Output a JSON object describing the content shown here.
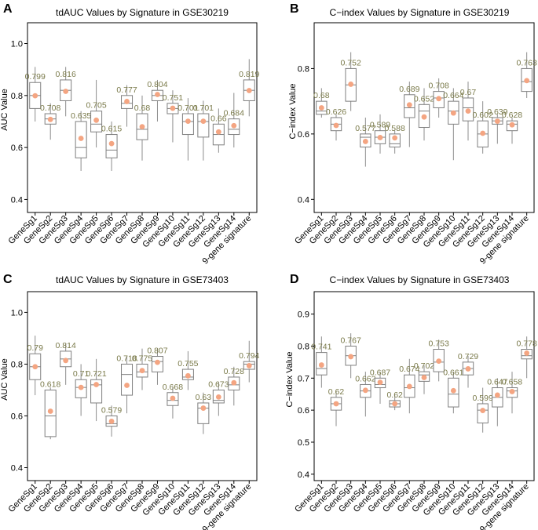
{
  "style": {
    "box_stroke": "#7f7f7f",
    "whisker_stroke": "#8c8c8c",
    "mean_dot": "#f4a582",
    "value_label": "#7a7a4a",
    "text": "#000000",
    "frame": "#000000"
  },
  "chart_data": [
    {
      "panel": "A",
      "type": "box",
      "title": "tdAUC Values by Signature in GSE30219",
      "xlabel": "",
      "ylabel": "AUC Value",
      "ylim": [
        0.35,
        1.08
      ],
      "yticks": [
        "0.4",
        "0.6",
        "0.8",
        "1.0"
      ],
      "ytick_values": [
        0.4,
        0.6,
        0.8,
        1.0
      ],
      "categories": [
        "GeneSg1",
        "GeneSg2",
        "GeneSg3",
        "GeneSg4",
        "GeneSg5",
        "GeneSg6",
        "GeneSg7",
        "GeneSg8",
        "GeneSg9",
        "GeneSg10",
        "GeneSg11",
        "GeneSg12",
        "GeneSg13",
        "GeneSg14",
        "9-gene signature"
      ],
      "means": [
        0.799,
        0.708,
        0.816,
        0.635,
        0.705,
        0.615,
        0.777,
        0.68,
        0.804,
        0.751,
        0.701,
        0.701,
        0.66,
        0.684,
        0.819
      ],
      "mean_labels": [
        "0.799",
        "0.708",
        "0.816",
        "0.635",
        "0.705",
        "0.615",
        "0.777",
        "0.68",
        "0.804",
        "0.751",
        "0.701",
        "0.701",
        "0.66",
        "0.684",
        "0.819"
      ],
      "boxes": [
        {
          "min": 0.7,
          "q1": 0.75,
          "median": 0.8,
          "q3": 0.85,
          "max": 0.91
        },
        {
          "min": 0.63,
          "q1": 0.69,
          "median": 0.71,
          "q3": 0.73,
          "max": 0.77
        },
        {
          "min": 0.72,
          "q1": 0.78,
          "median": 0.82,
          "q3": 0.86,
          "max": 0.91
        },
        {
          "min": 0.51,
          "q1": 0.56,
          "median": 0.6,
          "q3": 0.7,
          "max": 0.74
        },
        {
          "min": 0.6,
          "q1": 0.66,
          "median": 0.69,
          "q3": 0.74,
          "max": 0.86
        },
        {
          "min": 0.51,
          "q1": 0.56,
          "median": 0.59,
          "q3": 0.65,
          "max": 0.7
        },
        {
          "min": 0.68,
          "q1": 0.75,
          "median": 0.77,
          "q3": 0.8,
          "max": 0.84
        },
        {
          "min": 0.55,
          "q1": 0.63,
          "median": 0.67,
          "q3": 0.73,
          "max": 0.8
        },
        {
          "min": 0.7,
          "q1": 0.78,
          "median": 0.8,
          "q3": 0.82,
          "max": 0.86
        },
        {
          "min": 0.62,
          "q1": 0.73,
          "median": 0.75,
          "q3": 0.77,
          "max": 0.82
        },
        {
          "min": 0.55,
          "q1": 0.65,
          "median": 0.7,
          "q3": 0.73,
          "max": 0.79
        },
        {
          "min": 0.55,
          "q1": 0.64,
          "median": 0.7,
          "q3": 0.73,
          "max": 0.78
        },
        {
          "min": 0.58,
          "q1": 0.61,
          "median": 0.65,
          "q3": 0.69,
          "max": 0.75
        },
        {
          "min": 0.6,
          "q1": 0.65,
          "median": 0.67,
          "q3": 0.71,
          "max": 0.81
        },
        {
          "min": 0.72,
          "q1": 0.78,
          "median": 0.82,
          "q3": 0.86,
          "max": 0.94
        }
      ]
    },
    {
      "panel": "B",
      "type": "box",
      "title": "C−index Values by Signature in GSE30219",
      "xlabel": "",
      "ylabel": "C−index Value",
      "ylim": [
        0.36,
        0.94
      ],
      "yticks": [
        "0.4",
        "0.6",
        "0.8"
      ],
      "ytick_values": [
        0.4,
        0.6,
        0.8
      ],
      "categories": [
        "GeneSg1",
        "GeneSg2",
        "GeneSg3",
        "GeneSg4",
        "GeneSg5",
        "GeneSg6",
        "GeneSg7",
        "GeneSg8",
        "GeneSg9",
        "GeneSg10",
        "GeneSg11",
        "GeneSg12",
        "GeneSg13",
        "GeneSg14",
        "9-gene signature"
      ],
      "means": [
        0.68,
        0.626,
        0.752,
        0.577,
        0.589,
        0.588,
        0.689,
        0.652,
        0.708,
        0.664,
        0.67,
        0.602,
        0.639,
        0.628,
        0.763
      ],
      "mean_labels": [
        "0.68",
        "0.626",
        "0.752",
        "0.577",
        "0.589",
        "0.588",
        "0.689",
        "0.652",
        "0.708",
        "0.664",
        "0.67",
        "0.602",
        "0.639",
        "0.628",
        "0.763"
      ],
      "boxes": [
        {
          "min": 0.65,
          "q1": 0.66,
          "median": 0.67,
          "q3": 0.7,
          "max": 0.74
        },
        {
          "min": 0.58,
          "q1": 0.61,
          "median": 0.63,
          "q3": 0.65,
          "max": 0.66
        },
        {
          "min": 0.67,
          "q1": 0.7,
          "median": 0.75,
          "q3": 0.8,
          "max": 0.85
        },
        {
          "min": 0.5,
          "q1": 0.56,
          "median": 0.59,
          "q3": 0.6,
          "max": 0.65
        },
        {
          "min": 0.54,
          "q1": 0.57,
          "median": 0.59,
          "q3": 0.61,
          "max": 0.66
        },
        {
          "min": 0.54,
          "q1": 0.56,
          "median": 0.57,
          "q3": 0.6,
          "max": 0.61
        },
        {
          "min": 0.56,
          "q1": 0.65,
          "median": 0.68,
          "q3": 0.72,
          "max": 0.76
        },
        {
          "min": 0.58,
          "q1": 0.62,
          "median": 0.67,
          "q3": 0.69,
          "max": 0.74
        },
        {
          "min": 0.65,
          "q1": 0.68,
          "median": 0.71,
          "q3": 0.73,
          "max": 0.77
        },
        {
          "min": 0.52,
          "q1": 0.63,
          "median": 0.67,
          "q3": 0.7,
          "max": 0.74
        },
        {
          "min": 0.58,
          "q1": 0.64,
          "median": 0.68,
          "q3": 0.71,
          "max": 0.76
        },
        {
          "min": 0.54,
          "q1": 0.56,
          "median": 0.6,
          "q3": 0.64,
          "max": 0.7
        },
        {
          "min": 0.57,
          "q1": 0.63,
          "median": 0.64,
          "q3": 0.65,
          "max": 0.66
        },
        {
          "min": 0.57,
          "q1": 0.61,
          "median": 0.63,
          "q3": 0.64,
          "max": 0.65
        },
        {
          "min": 0.71,
          "q1": 0.73,
          "median": 0.76,
          "q3": 0.8,
          "max": 0.85
        }
      ]
    },
    {
      "panel": "C",
      "type": "box",
      "title": "tdAUC Values by Signature in GSE73403",
      "xlabel": "",
      "ylabel": "AUC Value",
      "ylim": [
        0.35,
        1.08
      ],
      "yticks": [
        "0.4",
        "0.6",
        "0.8",
        "1.0"
      ],
      "ytick_values": [
        0.4,
        0.6,
        0.8,
        1.0
      ],
      "categories": [
        "GeneSg1",
        "GeneSg2",
        "GeneSg3",
        "GeneSg4",
        "GeneSg5",
        "GeneSg6",
        "GeneSg7",
        "GeneSg8",
        "GeneSg9",
        "GeneSg10",
        "GeneSg11",
        "GeneSg12",
        "GeneSg13",
        "GeneSg14",
        "9-gene signature"
      ],
      "means": [
        0.79,
        0.618,
        0.814,
        0.71,
        0.721,
        0.579,
        0.718,
        0.775,
        0.807,
        0.668,
        0.755,
        0.63,
        0.673,
        0.728,
        0.794
      ],
      "mean_labels": [
        "0.79",
        "0.618",
        "0.814",
        "0.71",
        "0.721",
        "0.579",
        "0.718",
        "0.775",
        "0.807",
        "0.668",
        "0.755",
        "0.63",
        "0.673",
        "0.728",
        "0.794"
      ],
      "boxes": [
        {
          "min": 0.68,
          "q1": 0.74,
          "median": 0.79,
          "q3": 0.84,
          "max": 0.91
        },
        {
          "min": 0.51,
          "q1": 0.52,
          "median": 0.6,
          "q3": 0.7,
          "max": 0.71
        },
        {
          "min": 0.72,
          "q1": 0.79,
          "median": 0.82,
          "q3": 0.85,
          "max": 0.88
        },
        {
          "min": 0.6,
          "q1": 0.67,
          "median": 0.71,
          "q3": 0.74,
          "max": 0.8
        },
        {
          "min": 0.58,
          "q1": 0.65,
          "median": 0.72,
          "q3": 0.74,
          "max": 0.82
        },
        {
          "min": 0.52,
          "q1": 0.56,
          "median": 0.57,
          "q3": 0.6,
          "max": 0.64
        },
        {
          "min": 0.61,
          "q1": 0.68,
          "median": 0.76,
          "q3": 0.8,
          "max": 0.83
        },
        {
          "min": 0.7,
          "q1": 0.75,
          "median": 0.77,
          "q3": 0.8,
          "max": 0.86
        },
        {
          "min": 0.72,
          "q1": 0.77,
          "median": 0.81,
          "q3": 0.83,
          "max": 0.86
        },
        {
          "min": 0.59,
          "q1": 0.64,
          "median": 0.66,
          "q3": 0.69,
          "max": 0.71
        },
        {
          "min": 0.7,
          "q1": 0.74,
          "median": 0.75,
          "q3": 0.78,
          "max": 0.85
        },
        {
          "min": 0.53,
          "q1": 0.57,
          "median": 0.63,
          "q3": 0.65,
          "max": 0.69
        },
        {
          "min": 0.6,
          "q1": 0.65,
          "median": 0.66,
          "q3": 0.7,
          "max": 0.73
        },
        {
          "min": 0.64,
          "q1": 0.7,
          "median": 0.72,
          "q3": 0.75,
          "max": 0.79
        },
        {
          "min": 0.73,
          "q1": 0.78,
          "median": 0.8,
          "q3": 0.81,
          "max": 0.89
        }
      ]
    },
    {
      "panel": "D",
      "type": "box",
      "title": "C−index Values by Signature in GSE73403",
      "xlabel": "",
      "ylabel": "C−index Value",
      "ylim": [
        0.38,
        0.97
      ],
      "yticks": [
        "0.4",
        "0.5",
        "0.6",
        "0.7",
        "0.8",
        "0.9"
      ],
      "ytick_values": [
        0.4,
        0.5,
        0.6,
        0.7,
        0.8,
        0.9
      ],
      "categories": [
        "GeneSg1",
        "GeneSg2",
        "GeneSg3",
        "GeneSg4",
        "GeneSg5",
        "GeneSg6",
        "GeneSg7",
        "GeneSg8",
        "GeneSg9",
        "GeneSg10",
        "GeneSg11",
        "GeneSg12",
        "GeneSg13",
        "GeneSg14",
        "9-gene signature"
      ],
      "means": [
        0.741,
        0.62,
        0.767,
        0.662,
        0.687,
        0.62,
        0.674,
        0.702,
        0.753,
        0.661,
        0.729,
        0.599,
        0.647,
        0.658,
        0.778
      ],
      "mean_labels": [
        "0.741",
        "0.62",
        "0.767",
        "0.662",
        "0.687",
        "0.62",
        "0.674",
        "0.702",
        "0.753",
        "0.661",
        "0.729",
        "0.599",
        "0.647",
        "0.658",
        "0.778"
      ],
      "boxes": [
        {
          "min": 0.67,
          "q1": 0.71,
          "median": 0.73,
          "q3": 0.78,
          "max": 0.83
        },
        {
          "min": 0.55,
          "q1": 0.6,
          "median": 0.62,
          "q3": 0.64,
          "max": 0.66
        },
        {
          "min": 0.7,
          "q1": 0.74,
          "median": 0.77,
          "q3": 0.8,
          "max": 0.84
        },
        {
          "min": 0.58,
          "q1": 0.64,
          "median": 0.66,
          "q3": 0.68,
          "max": 0.72
        },
        {
          "min": 0.62,
          "q1": 0.67,
          "median": 0.68,
          "q3": 0.7,
          "max": 0.72
        },
        {
          "min": 0.6,
          "q1": 0.61,
          "median": 0.62,
          "q3": 0.63,
          "max": 0.65
        },
        {
          "min": 0.59,
          "q1": 0.64,
          "median": 0.67,
          "q3": 0.71,
          "max": 0.76
        },
        {
          "min": 0.65,
          "q1": 0.69,
          "median": 0.71,
          "q3": 0.72,
          "max": 0.74
        },
        {
          "min": 0.69,
          "q1": 0.72,
          "median": 0.75,
          "q3": 0.79,
          "max": 0.82
        },
        {
          "min": 0.59,
          "q1": 0.61,
          "median": 0.65,
          "q3": 0.7,
          "max": 0.72
        },
        {
          "min": 0.67,
          "q1": 0.71,
          "median": 0.73,
          "q3": 0.75,
          "max": 0.77
        },
        {
          "min": 0.53,
          "q1": 0.56,
          "median": 0.6,
          "q3": 0.62,
          "max": 0.67
        },
        {
          "min": 0.55,
          "q1": 0.61,
          "median": 0.64,
          "q3": 0.67,
          "max": 0.7
        },
        {
          "min": 0.59,
          "q1": 0.64,
          "median": 0.66,
          "q3": 0.67,
          "max": 0.72
        },
        {
          "min": 0.7,
          "q1": 0.76,
          "median": 0.77,
          "q3": 0.79,
          "max": 0.83
        }
      ]
    }
  ]
}
